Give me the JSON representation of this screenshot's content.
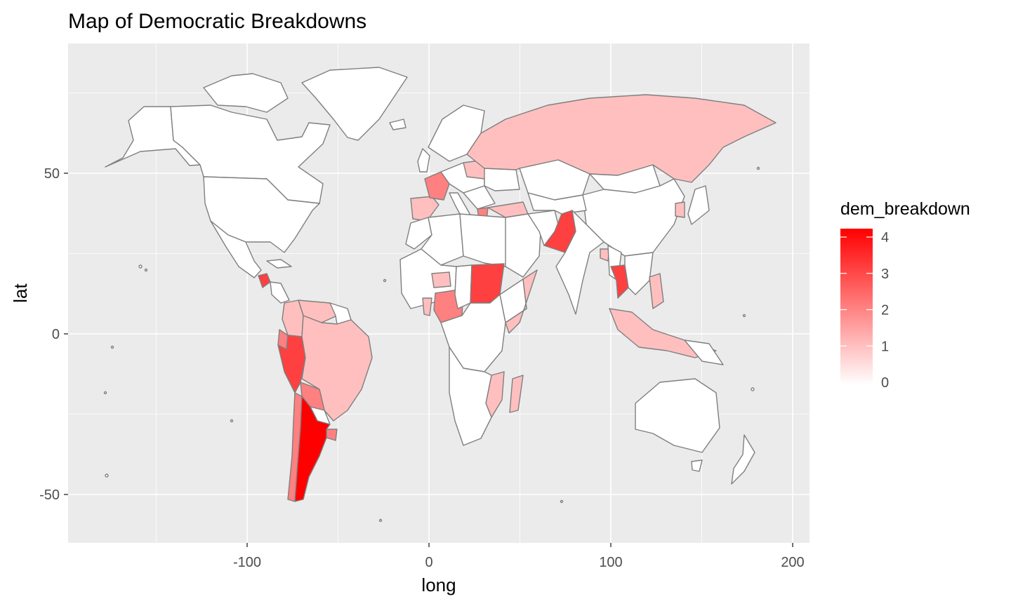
{
  "chart_data": {
    "type": "choropleth",
    "title": "Map of Democratic Breakdowns",
    "xlabel": "long",
    "ylabel": "lat",
    "xlim": [
      -190,
      210
    ],
    "ylim": [
      -65,
      90
    ],
    "x_ticks": [
      -100,
      0,
      100,
      200
    ],
    "x_tick_labels": [
      "-100",
      "0",
      "100",
      "200"
    ],
    "y_ticks": [
      -50,
      0,
      50
    ],
    "y_tick_labels": [
      "-50",
      "0",
      "50"
    ],
    "legend": {
      "title": "dem_breakdown",
      "position": "right",
      "min": 0,
      "max": 4,
      "breaks": [
        0,
        1,
        2,
        3,
        4
      ],
      "labels": [
        "0",
        "1",
        "2",
        "3",
        "4"
      ],
      "low_color": "#ffffff",
      "high_color": "#ff0000"
    },
    "panel_background": "#ebebeb",
    "grid_color": "#ffffff",
    "border_color": "#7f7f7f",
    "regions": [
      {
        "name": "Argentina",
        "value": 4
      },
      {
        "name": "Sudan",
        "value": 3
      },
      {
        "name": "Thailand",
        "value": 3
      },
      {
        "name": "Pakistan",
        "value": 3
      },
      {
        "name": "Peru",
        "value": 3
      },
      {
        "name": "Guatemala",
        "value": 3
      },
      {
        "name": "France",
        "value": 2
      },
      {
        "name": "Chile",
        "value": 2
      },
      {
        "name": "Nigeria",
        "value": 2
      },
      {
        "name": "Uruguay",
        "value": 2
      },
      {
        "name": "Ecuador",
        "value": 2
      },
      {
        "name": "Bolivia",
        "value": 2
      },
      {
        "name": "Greece",
        "value": 2
      },
      {
        "name": "Russia",
        "value": 1
      },
      {
        "name": "Brazil",
        "value": 1
      },
      {
        "name": "Colombia",
        "value": 1
      },
      {
        "name": "Venezuela",
        "value": 1
      },
      {
        "name": "Spain",
        "value": 1
      },
      {
        "name": "Turkey",
        "value": 1
      },
      {
        "name": "Indonesia",
        "value": 1
      },
      {
        "name": "Philippines",
        "value": 1
      },
      {
        "name": "South Korea",
        "value": 1
      },
      {
        "name": "Burkina Faso",
        "value": 1
      },
      {
        "name": "Ghana",
        "value": 1
      },
      {
        "name": "Madagascar",
        "value": 1
      },
      {
        "name": "Mozambique",
        "value": 1
      },
      {
        "name": "Somalia",
        "value": 1
      },
      {
        "name": "Poland",
        "value": 1
      },
      {
        "name": "Bangladesh",
        "value": 1
      }
    ]
  }
}
